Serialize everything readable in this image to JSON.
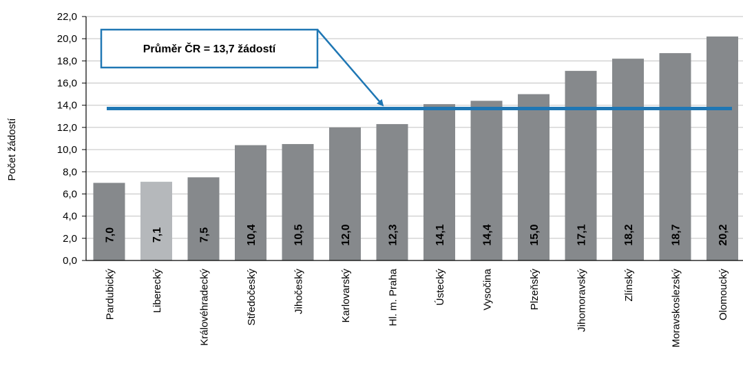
{
  "chart_data": {
    "type": "bar",
    "ylabel": "Počet žádostí",
    "xlabel": "",
    "ylim": [
      0,
      22
    ],
    "y_ticks": [
      "0,0",
      "2,0",
      "4,0",
      "6,0",
      "8,0",
      "10,0",
      "12,0",
      "14,0",
      "16,0",
      "18,0",
      "20,0",
      "22,0"
    ],
    "categories": [
      "Pardubický",
      "Liberecký",
      "Královéhradecký",
      "Středočeský",
      "Jihočeský",
      "Karlovarský",
      "Hl. m. Praha",
      "Ústecký",
      "Vysočina",
      "Plzeňský",
      "Jihomoravský",
      "Zlínský",
      "Moravskoslezský",
      "Olomoucký"
    ],
    "values": [
      7.0,
      7.1,
      7.5,
      10.4,
      10.5,
      12.0,
      12.3,
      14.1,
      14.4,
      15.0,
      17.1,
      18.2,
      18.7,
      20.2
    ],
    "value_labels": [
      "7,0",
      "7,1",
      "7,5",
      "10,4",
      "10,5",
      "12,0",
      "12,3",
      "14,1",
      "14,4",
      "15,0",
      "17,1",
      "18,2",
      "18,7",
      "20,2"
    ],
    "highlight_category": "Liberecký",
    "reference_line": {
      "value": 13.7,
      "label": "Průměr ČR = 13,7 žádostí"
    },
    "grid": true,
    "colors": {
      "bar": "#86898c",
      "highlight": "#b5b8bb",
      "line": "#1f77b4",
      "grid": "#c0c0c0"
    }
  }
}
